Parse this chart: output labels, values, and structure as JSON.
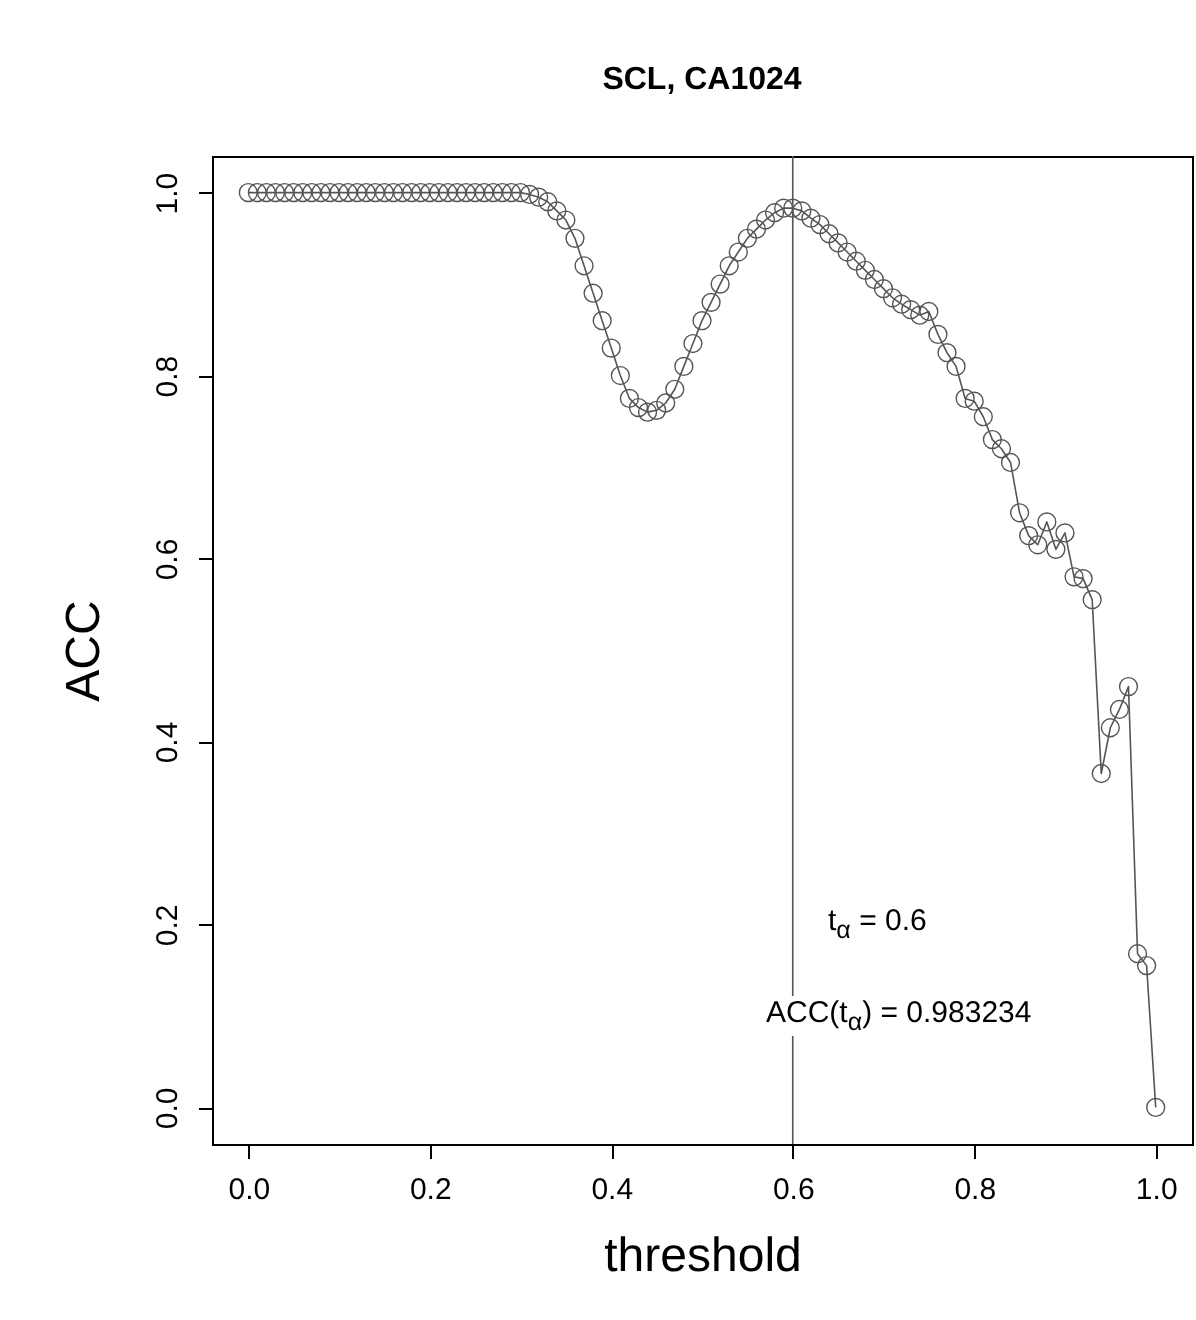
{
  "chart_data": {
    "type": "line",
    "title": "SCL, CA1024",
    "xlabel": "threshold",
    "ylabel": "ACC",
    "x": [
      0,
      0.01,
      0.02,
      0.03,
      0.04,
      0.05,
      0.06,
      0.07,
      0.08,
      0.09,
      0.1,
      0.11,
      0.12,
      0.13,
      0.14,
      0.15,
      0.16,
      0.17,
      0.18,
      0.19,
      0.2,
      0.21,
      0.22,
      0.23,
      0.24,
      0.25,
      0.26,
      0.27,
      0.28,
      0.29,
      0.3,
      0.31,
      0.32,
      0.33,
      0.34,
      0.35,
      0.36,
      0.37,
      0.38,
      0.39,
      0.4,
      0.41,
      0.42,
      0.43,
      0.44,
      0.45,
      0.46,
      0.47,
      0.48,
      0.49,
      0.5,
      0.51,
      0.52,
      0.53,
      0.54,
      0.55,
      0.56,
      0.57,
      0.58,
      0.59,
      0.6,
      0.61,
      0.62,
      0.63,
      0.64,
      0.65,
      0.66,
      0.67,
      0.68,
      0.69,
      0.7,
      0.71,
      0.72,
      0.73,
      0.74,
      0.75,
      0.76,
      0.77,
      0.78,
      0.79,
      0.8,
      0.81,
      0.82,
      0.83,
      0.84,
      0.85,
      0.86,
      0.87,
      0.88,
      0.89,
      0.9,
      0.91,
      0.92,
      0.93,
      0.94,
      0.95,
      0.96,
      0.97,
      0.98,
      0.99,
      1.0
    ],
    "series": [
      {
        "color": "#555555",
        "values": [
          1,
          1,
          1,
          1,
          1,
          1,
          1,
          1,
          1,
          1,
          1,
          1,
          1,
          1,
          1,
          1,
          1,
          1,
          1,
          1,
          1,
          1,
          1,
          1,
          1,
          1,
          1,
          1,
          1,
          1,
          1,
          0.998,
          0.995,
          0.99,
          0.98,
          0.97,
          0.95,
          0.92,
          0.89,
          0.86,
          0.83,
          0.8,
          0.775,
          0.765,
          0.76,
          0.762,
          0.77,
          0.785,
          0.81,
          0.835,
          0.86,
          0.88,
          0.9,
          0.92,
          0.935,
          0.95,
          0.96,
          0.97,
          0.978,
          0.983,
          0.983,
          0.98,
          0.972,
          0.965,
          0.955,
          0.945,
          0.935,
          0.925,
          0.915,
          0.905,
          0.895,
          0.885,
          0.878,
          0.872,
          0.866,
          0.87,
          0.845,
          0.825,
          0.81,
          0.775,
          0.772,
          0.755,
          0.73,
          0.72,
          0.705,
          0.65,
          0.625,
          0.615,
          0.64,
          0.61,
          0.628,
          0.58,
          0.578,
          0.555,
          0.365,
          0.415,
          0.435,
          0.46,
          0.168,
          0.155,
          0
        ]
      }
    ],
    "xlim": [
      -0.04,
      1.04
    ],
    "xticks": [
      {
        "value": 0,
        "label": "0.0"
      },
      0.2,
      0.4,
      0.6,
      0.8,
      {
        "value": 1,
        "label": "1.0"
      }
    ],
    "ylim": [
      -0.04,
      1.04
    ],
    "yticks": [
      {
        "value": 0,
        "label": "0.0"
      },
      0.2,
      0.4,
      0.6,
      0.8,
      {
        "value": 1,
        "label": "1.0"
      }
    ],
    "marker": "circle",
    "grid": false,
    "ref_lines": [
      {
        "axis": "x",
        "value": 0.6,
        "color": "#555555"
      }
    ],
    "annotations": [
      "t$_{α}$ = 0.6",
      "ACC(t$_{α}$) = 0.983234"
    ]
  }
}
